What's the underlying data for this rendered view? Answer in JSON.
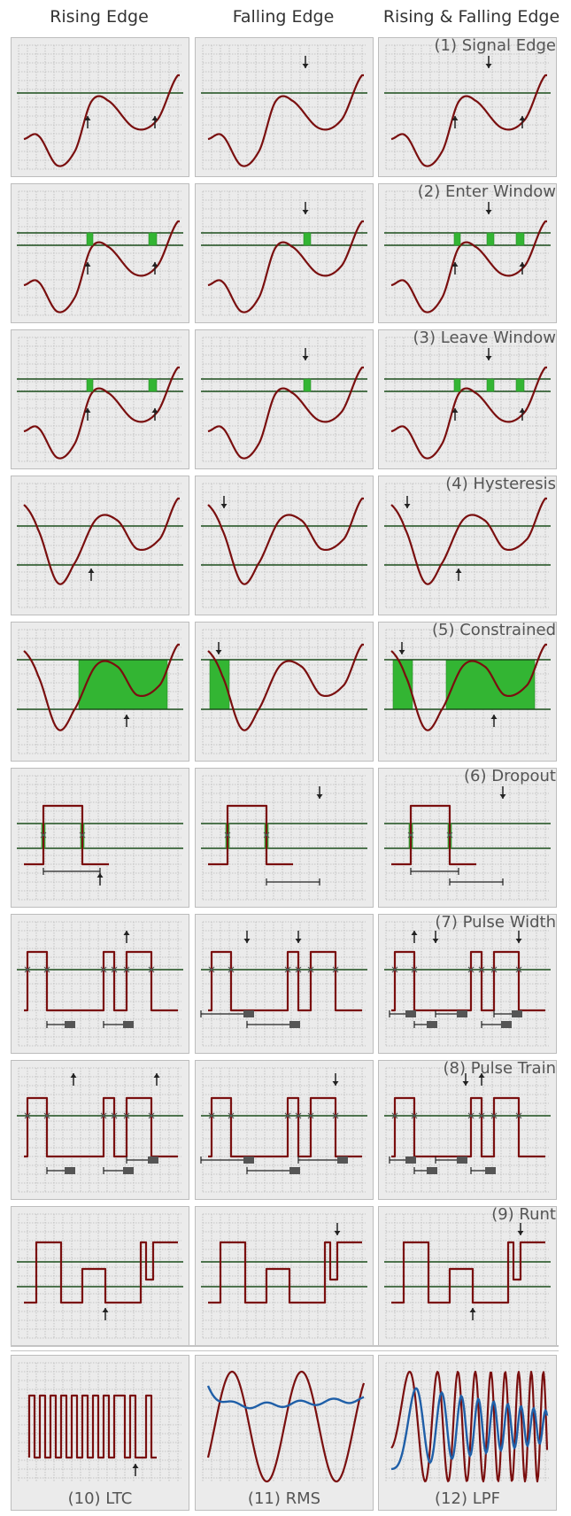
{
  "headers": [
    "Rising Edge",
    "Falling Edge",
    "Rising & Falling Edge"
  ],
  "rows": [
    {
      "title": "(1) Signal Edge"
    },
    {
      "title": "(2) Enter Window"
    },
    {
      "title": "(3) Leave Window"
    },
    {
      "title": "(4) Hysteresis"
    },
    {
      "title": "(5) Constrained"
    },
    {
      "title": "(6) Dropout"
    },
    {
      "title": "(7) Pulse Width"
    },
    {
      "title": "(8) Pulse Train"
    },
    {
      "title": "(9) Runt"
    }
  ],
  "bottom": [
    "(10) LTC",
    "(11) RMS",
    "(12) LPF"
  ],
  "colors": {
    "panel_bg": "#ebebeb",
    "grid": "#b9b9b9",
    "signal": "#7a0f0f",
    "threshold": "#1b4d1b",
    "highlight": "#33b533",
    "rms": "#1f5fa8",
    "marker": "#222222"
  }
}
